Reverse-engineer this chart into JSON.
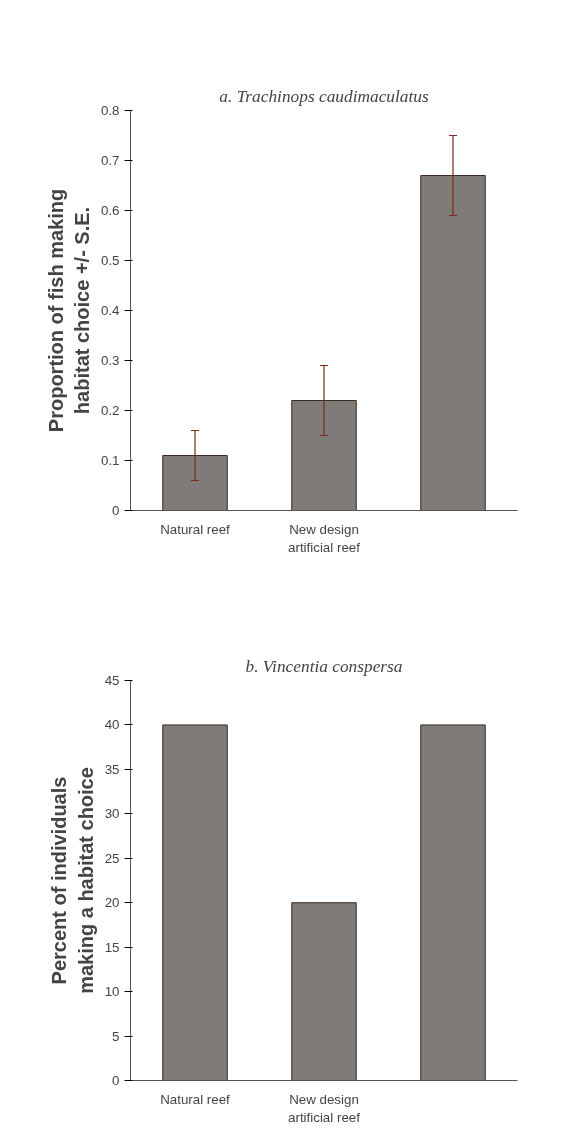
{
  "chart_data": [
    {
      "type": "bar",
      "title": "a. Trachinops caudimaculatus",
      "ylabel": "Proportion of fish making habitat choice +/- S.E.",
      "categories": [
        "Natural reef",
        "New design artificial reef",
        null
      ],
      "values": [
        0.11,
        0.22,
        0.67
      ],
      "errors": [
        0.05,
        0.07,
        0.08
      ],
      "color": "#7f7b78",
      "ylim": [
        0,
        0.8
      ],
      "yticks": [
        0,
        0.1,
        0.2,
        0.3,
        0.4,
        0.5,
        0.6,
        0.7,
        0.8
      ],
      "grid": false
    },
    {
      "type": "bar",
      "title": "b. Vincentia conspersa",
      "ylabel": "Percent of individuals making a habitat choice",
      "categories": [
        "Natural reef",
        "New design artificial reef",
        null
      ],
      "values": [
        40,
        20,
        40
      ],
      "color": "#7f7b78",
      "ylim": [
        0,
        45
      ],
      "yticks": [
        0,
        5,
        10,
        15,
        20,
        25,
        30,
        35,
        40,
        45
      ],
      "grid": false
    }
  ]
}
